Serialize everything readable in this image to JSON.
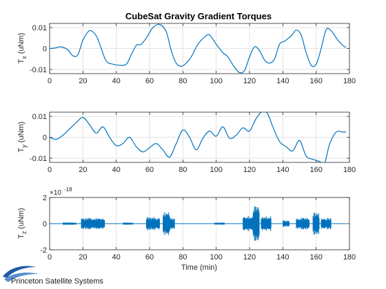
{
  "figure": {
    "title": "CubeSat Gravity Gradient Torques",
    "xlabel": "Time (min)",
    "logo_text": "Princeton Satellite Systems",
    "line_color": "#0072BD"
  },
  "chart_data": [
    {
      "type": "line",
      "ylabel_main": "T",
      "ylabel_sub": "x",
      "ylabel_unit": "(uNm)",
      "xlim": [
        0,
        180
      ],
      "ylim": [
        -0.012,
        0.012
      ],
      "xticks": [
        "0",
        "20",
        "40",
        "60",
        "80",
        "100",
        "120",
        "140",
        "160",
        "180"
      ],
      "yticks": [
        "-0.01",
        "0",
        "0.01"
      ],
      "ytick_values": [
        -0.01,
        0,
        0.01
      ],
      "grid": true,
      "series": [
        {
          "x": [
            0,
            3,
            7,
            11,
            14,
            17,
            20,
            24,
            28,
            31,
            34,
            38,
            42,
            46,
            49,
            52,
            55,
            58,
            62,
            66,
            70,
            73,
            76,
            79,
            82,
            85,
            89,
            93,
            96,
            100,
            104,
            107,
            111,
            114,
            117,
            120,
            123,
            126,
            129,
            132,
            135,
            138,
            141,
            145,
            148,
            151,
            154,
            157,
            160,
            163,
            166,
            169,
            173,
            176,
            178
          ],
          "y": [
            0.0,
            0.0002,
            0.0008,
            -0.0007,
            -0.0035,
            -0.003,
            0.004,
            0.0085,
            0.006,
            0.0,
            -0.006,
            -0.0075,
            -0.008,
            -0.0075,
            -0.003,
            0.0015,
            0.002,
            0.005,
            0.01,
            0.0115,
            0.008,
            -0.001,
            -0.007,
            -0.0085,
            -0.007,
            -0.004,
            0.002,
            0.0055,
            0.0065,
            0.002,
            -0.002,
            -0.004,
            -0.009,
            -0.0115,
            -0.0105,
            -0.004,
            0.0008,
            -0.001,
            -0.0055,
            -0.007,
            -0.005,
            0.002,
            0.0035,
            0.006,
            0.0088,
            0.0065,
            -0.002,
            -0.008,
            -0.0075,
            0.0,
            0.009,
            0.0085,
            0.004,
            0.0015,
            0.0005
          ]
        }
      ]
    },
    {
      "type": "line",
      "ylabel_main": "T",
      "ylabel_sub": "y",
      "ylabel_unit": "(uNm)",
      "xlim": [
        0,
        180
      ],
      "ylim": [
        -0.012,
        0.012
      ],
      "xticks": [
        "0",
        "20",
        "40",
        "60",
        "80",
        "100",
        "120",
        "140",
        "160",
        "180"
      ],
      "yticks": [
        "-0.01",
        "0",
        "0.01"
      ],
      "ytick_values": [
        -0.01,
        0,
        0.01
      ],
      "grid": true,
      "series": [
        {
          "x": [
            0,
            4,
            8,
            12,
            16,
            20,
            24,
            28,
            32,
            36,
            40,
            44,
            48,
            52,
            56,
            60,
            64,
            68,
            72,
            76,
            80,
            84,
            88,
            92,
            96,
            100,
            104,
            108,
            112,
            116,
            120,
            124,
            128,
            131,
            134,
            138,
            142,
            146,
            150,
            154,
            158,
            162,
            165,
            168,
            172,
            176,
            178
          ],
          "y": [
            0.0,
            -0.001,
            0.001,
            0.004,
            0.007,
            0.0095,
            0.006,
            0.002,
            0.005,
            0.0,
            -0.004,
            -0.003,
            0.0,
            -0.0045,
            -0.007,
            -0.005,
            -0.003,
            -0.006,
            -0.0095,
            -0.003,
            0.0035,
            0.0,
            -0.006,
            -0.0005,
            0.003,
            0.0005,
            0.005,
            -0.0005,
            0.001,
            0.0045,
            0.003,
            0.009,
            0.0125,
            0.011,
            0.005,
            -0.002,
            -0.0045,
            -0.0065,
            -0.0015,
            -0.009,
            -0.0105,
            -0.0115,
            -0.0125,
            -0.0035,
            0.0025,
            0.0025,
            0.0025
          ]
        }
      ]
    },
    {
      "type": "line",
      "ylabel_main": "T",
      "ylabel_sub": "z",
      "ylabel_unit": "(uNm)",
      "exponent_label": "×10",
      "exponent_power": "-18",
      "xlim": [
        0,
        180
      ],
      "ylim": [
        -2,
        2
      ],
      "xticks": [
        "0",
        "20",
        "40",
        "60",
        "80",
        "100",
        "120",
        "140",
        "160",
        "180"
      ],
      "yticks": [
        "-2",
        "0",
        "2"
      ],
      "ytick_values": [
        -2,
        0,
        2
      ],
      "grid": true,
      "noise_bursts": [
        {
          "center": 12,
          "width": 8,
          "amp": 0.1
        },
        {
          "center": 23,
          "width": 8,
          "amp": 0.45
        },
        {
          "center": 30,
          "width": 6,
          "amp": 0.45
        },
        {
          "center": 47,
          "width": 6,
          "amp": 0.1
        },
        {
          "center": 62,
          "width": 8,
          "amp": 0.5
        },
        {
          "center": 70,
          "width": 4,
          "amp": 0.9
        },
        {
          "center": 73,
          "width": 4,
          "amp": 0.45
        },
        {
          "center": 102,
          "width": 6,
          "amp": 0.1
        },
        {
          "center": 120,
          "width": 8,
          "amp": 0.6
        },
        {
          "center": 124,
          "width": 4,
          "amp": 1.35
        },
        {
          "center": 130,
          "width": 6,
          "amp": 0.6
        },
        {
          "center": 142,
          "width": 4,
          "amp": 0.25
        },
        {
          "center": 152,
          "width": 8,
          "amp": 0.45
        },
        {
          "center": 160,
          "width": 4,
          "amp": 0.9
        },
        {
          "center": 166,
          "width": 6,
          "amp": 0.45
        }
      ]
    }
  ]
}
